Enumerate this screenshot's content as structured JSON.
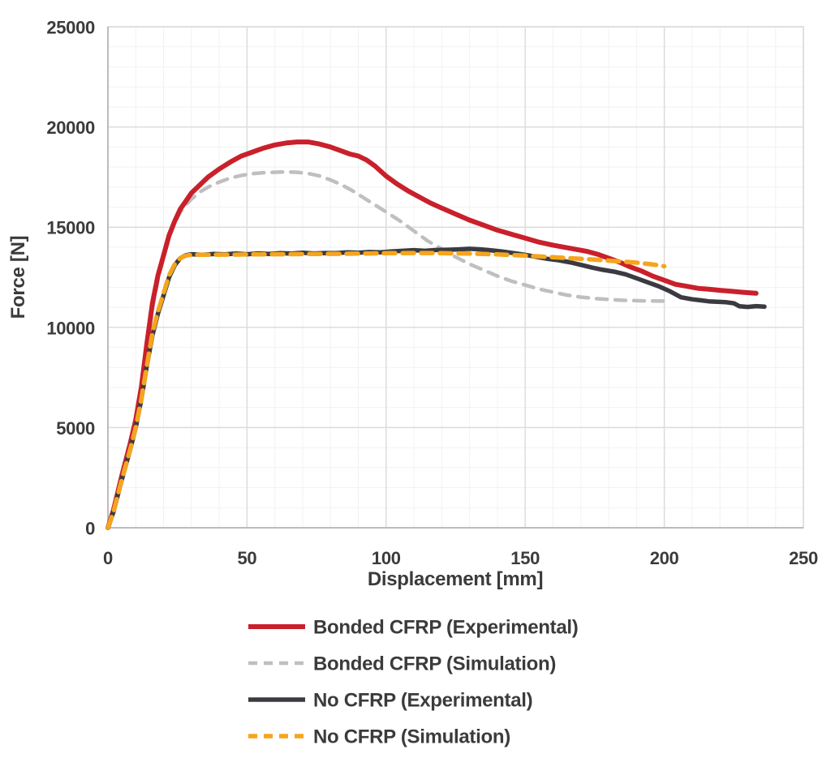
{
  "chart_data": {
    "type": "line",
    "xlabel": "Displacement [mm]",
    "ylabel": "Force [N]",
    "xlim": [
      0,
      250
    ],
    "ylim": [
      0,
      25000
    ],
    "x_ticks": [
      0,
      50,
      100,
      150,
      200,
      250
    ],
    "y_ticks": [
      0,
      5000,
      10000,
      15000,
      20000,
      25000
    ],
    "x_minor_step": 10,
    "y_minor_step": 1000,
    "grid": "major and minor gridlines on",
    "legend_position": "bottom-left",
    "colors": {
      "major_grid": "#dcdcdc",
      "minor_grid": "#f2f2f2",
      "axis_line": "#bcbcbc",
      "text": "#3b3b3b",
      "background": "#ffffff"
    },
    "series": [
      {
        "name": "Bonded CFRP (Experimental)",
        "color": "#c9202b",
        "style": "solid",
        "width": 6,
        "dash": [],
        "points": [
          [
            0,
            0
          ],
          [
            2,
            900
          ],
          [
            5,
            2600
          ],
          [
            8,
            4200
          ],
          [
            10,
            5400
          ],
          [
            12,
            7000
          ],
          [
            14,
            9200
          ],
          [
            16,
            11200
          ],
          [
            18,
            12600
          ],
          [
            20,
            13600
          ],
          [
            22,
            14600
          ],
          [
            24,
            15300
          ],
          [
            26,
            15900
          ],
          [
            28,
            16300
          ],
          [
            30,
            16700
          ],
          [
            33,
            17100
          ],
          [
            36,
            17500
          ],
          [
            40,
            17900
          ],
          [
            44,
            18250
          ],
          [
            48,
            18550
          ],
          [
            52,
            18750
          ],
          [
            56,
            18950
          ],
          [
            60,
            19100
          ],
          [
            64,
            19200
          ],
          [
            68,
            19250
          ],
          [
            72,
            19250
          ],
          [
            76,
            19150
          ],
          [
            80,
            19000
          ],
          [
            84,
            18800
          ],
          [
            87,
            18650
          ],
          [
            90,
            18550
          ],
          [
            93,
            18350
          ],
          [
            96,
            18050
          ],
          [
            100,
            17550
          ],
          [
            104,
            17150
          ],
          [
            108,
            16800
          ],
          [
            112,
            16500
          ],
          [
            116,
            16200
          ],
          [
            120,
            15950
          ],
          [
            125,
            15650
          ],
          [
            130,
            15350
          ],
          [
            135,
            15100
          ],
          [
            140,
            14850
          ],
          [
            145,
            14650
          ],
          [
            150,
            14450
          ],
          [
            155,
            14250
          ],
          [
            160,
            14100
          ],
          [
            164,
            14000
          ],
          [
            168,
            13900
          ],
          [
            172,
            13800
          ],
          [
            176,
            13650
          ],
          [
            180,
            13450
          ],
          [
            184,
            13250
          ],
          [
            188,
            13000
          ],
          [
            192,
            12800
          ],
          [
            196,
            12550
          ],
          [
            200,
            12350
          ],
          [
            204,
            12150
          ],
          [
            208,
            12050
          ],
          [
            212,
            11950
          ],
          [
            216,
            11900
          ],
          [
            220,
            11850
          ],
          [
            224,
            11800
          ],
          [
            228,
            11750
          ],
          [
            233,
            11700
          ]
        ]
      },
      {
        "name": "Bonded CFRP (Simulation)",
        "color": "#bfbfbf",
        "style": "dashed",
        "width": 4.5,
        "dash": [
          13,
          10
        ],
        "points": [
          [
            0,
            0
          ],
          [
            2,
            850
          ],
          [
            5,
            2500
          ],
          [
            8,
            4100
          ],
          [
            10,
            5200
          ],
          [
            12,
            6800
          ],
          [
            14,
            8900
          ],
          [
            16,
            10900
          ],
          [
            18,
            12400
          ],
          [
            20,
            13500
          ],
          [
            22,
            14500
          ],
          [
            24,
            15200
          ],
          [
            26,
            15750
          ],
          [
            28,
            16100
          ],
          [
            30,
            16400
          ],
          [
            33,
            16750
          ],
          [
            36,
            17000
          ],
          [
            40,
            17250
          ],
          [
            44,
            17450
          ],
          [
            48,
            17580
          ],
          [
            52,
            17670
          ],
          [
            56,
            17720
          ],
          [
            60,
            17740
          ],
          [
            64,
            17760
          ],
          [
            68,
            17740
          ],
          [
            72,
            17680
          ],
          [
            76,
            17560
          ],
          [
            80,
            17360
          ],
          [
            84,
            17110
          ],
          [
            88,
            16810
          ],
          [
            92,
            16460
          ],
          [
            96,
            16110
          ],
          [
            100,
            15760
          ],
          [
            105,
            15310
          ],
          [
            110,
            14810
          ],
          [
            115,
            14310
          ],
          [
            120,
            13910
          ],
          [
            125,
            13510
          ],
          [
            130,
            13160
          ],
          [
            135,
            12860
          ],
          [
            140,
            12560
          ],
          [
            145,
            12310
          ],
          [
            150,
            12110
          ],
          [
            155,
            11910
          ],
          [
            160,
            11760
          ],
          [
            165,
            11610
          ],
          [
            170,
            11510
          ],
          [
            175,
            11440
          ],
          [
            180,
            11390
          ],
          [
            185,
            11350
          ],
          [
            190,
            11330
          ],
          [
            195,
            11320
          ],
          [
            200,
            11310
          ]
        ]
      },
      {
        "name": "No CFRP (Experimental)",
        "color": "#3a3a40",
        "style": "solid",
        "width": 5.5,
        "dash": [],
        "points": [
          [
            0,
            0
          ],
          [
            2,
            800
          ],
          [
            5,
            2400
          ],
          [
            8,
            3900
          ],
          [
            10,
            5000
          ],
          [
            12,
            6400
          ],
          [
            14,
            8100
          ],
          [
            16,
            9600
          ],
          [
            18,
            10700
          ],
          [
            20,
            11600
          ],
          [
            22,
            12500
          ],
          [
            24,
            13100
          ],
          [
            26,
            13450
          ],
          [
            28,
            13600
          ],
          [
            30,
            13650
          ],
          [
            34,
            13620
          ],
          [
            38,
            13660
          ],
          [
            42,
            13640
          ],
          [
            46,
            13680
          ],
          [
            50,
            13650
          ],
          [
            54,
            13690
          ],
          [
            58,
            13660
          ],
          [
            62,
            13700
          ],
          [
            66,
            13680
          ],
          [
            70,
            13720
          ],
          [
            74,
            13690
          ],
          [
            78,
            13710
          ],
          [
            82,
            13700
          ],
          [
            86,
            13740
          ],
          [
            90,
            13720
          ],
          [
            94,
            13760
          ],
          [
            98,
            13740
          ],
          [
            102,
            13790
          ],
          [
            106,
            13820
          ],
          [
            110,
            13850
          ],
          [
            114,
            13820
          ],
          [
            118,
            13860
          ],
          [
            122,
            13870
          ],
          [
            126,
            13890
          ],
          [
            130,
            13920
          ],
          [
            134,
            13890
          ],
          [
            138,
            13840
          ],
          [
            142,
            13780
          ],
          [
            146,
            13700
          ],
          [
            150,
            13620
          ],
          [
            154,
            13520
          ],
          [
            158,
            13420
          ],
          [
            162,
            13350
          ],
          [
            166,
            13250
          ],
          [
            170,
            13120
          ],
          [
            174,
            12980
          ],
          [
            178,
            12870
          ],
          [
            182,
            12780
          ],
          [
            186,
            12650
          ],
          [
            190,
            12450
          ],
          [
            194,
            12250
          ],
          [
            198,
            12050
          ],
          [
            202,
            11800
          ],
          [
            206,
            11500
          ],
          [
            210,
            11400
          ],
          [
            213,
            11350
          ],
          [
            216,
            11300
          ],
          [
            219,
            11280
          ],
          [
            222,
            11260
          ],
          [
            225,
            11200
          ],
          [
            227,
            11050
          ],
          [
            230,
            11020
          ],
          [
            233,
            11060
          ],
          [
            236,
            11030
          ]
        ]
      },
      {
        "name": "No CFRP (Simulation)",
        "color": "#f5a51d",
        "style": "dashed",
        "width": 5.5,
        "dash": [
          14,
          9
        ],
        "points": [
          [
            0,
            0
          ],
          [
            2,
            800
          ],
          [
            5,
            2400
          ],
          [
            8,
            3900
          ],
          [
            10,
            5000
          ],
          [
            12,
            6400
          ],
          [
            14,
            8100
          ],
          [
            16,
            9700
          ],
          [
            18,
            10800
          ],
          [
            20,
            11700
          ],
          [
            22,
            12600
          ],
          [
            24,
            13150
          ],
          [
            26,
            13450
          ],
          [
            28,
            13580
          ],
          [
            30,
            13620
          ],
          [
            35,
            13620
          ],
          [
            40,
            13630
          ],
          [
            45,
            13630
          ],
          [
            50,
            13640
          ],
          [
            55,
            13640
          ],
          [
            60,
            13650
          ],
          [
            65,
            13650
          ],
          [
            70,
            13660
          ],
          [
            75,
            13660
          ],
          [
            80,
            13670
          ],
          [
            85,
            13670
          ],
          [
            90,
            13680
          ],
          [
            95,
            13690
          ],
          [
            100,
            13700
          ],
          [
            105,
            13700
          ],
          [
            110,
            13710
          ],
          [
            115,
            13710
          ],
          [
            120,
            13700
          ],
          [
            125,
            13690
          ],
          [
            130,
            13680
          ],
          [
            135,
            13660
          ],
          [
            140,
            13640
          ],
          [
            145,
            13610
          ],
          [
            150,
            13580
          ],
          [
            155,
            13540
          ],
          [
            160,
            13500
          ],
          [
            165,
            13460
          ],
          [
            170,
            13420
          ],
          [
            175,
            13380
          ],
          [
            180,
            13330
          ],
          [
            185,
            13280
          ],
          [
            190,
            13230
          ],
          [
            195,
            13150
          ],
          [
            198,
            13100
          ],
          [
            200,
            13050
          ]
        ]
      }
    ]
  }
}
